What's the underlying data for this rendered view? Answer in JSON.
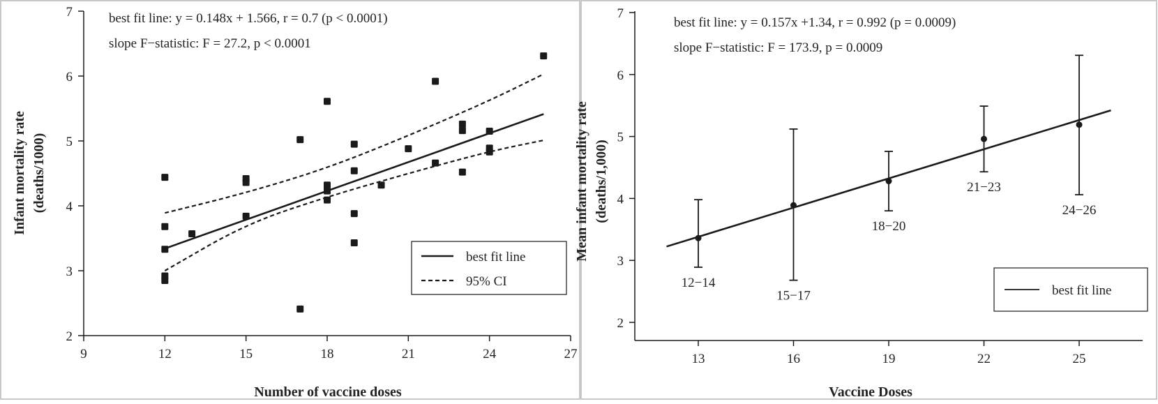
{
  "colors": {
    "ink": "#1a1a1a",
    "background": "#ffffff",
    "border": "#c8c8c8"
  },
  "chart_data": [
    {
      "type": "scatter",
      "xlabel": "Number of vaccine doses",
      "ylabel_line1": "Infant mortality rate",
      "ylabel_line2": "(deaths/1000)",
      "xlim": [
        9,
        27
      ],
      "ylim": [
        2,
        7
      ],
      "xticks": [
        "9",
        "12",
        "15",
        "18",
        "21",
        "24",
        "27"
      ],
      "yticks": [
        "2",
        "3",
        "4",
        "5",
        "6",
        "7"
      ],
      "grid": false,
      "legend_position": "bottom-right",
      "annotations": [
        "best fit line: y = 0.148x + 1.566, r = 0.7 (p < 0.0001)",
        "slope F−statistic: F = 27.2, p < 0.0001"
      ],
      "points": [
        {
          "x": 12,
          "y": 4.44
        },
        {
          "x": 12,
          "y": 3.68
        },
        {
          "x": 12,
          "y": 3.33
        },
        {
          "x": 12,
          "y": 2.92
        },
        {
          "x": 12,
          "y": 2.85
        },
        {
          "x": 13,
          "y": 3.57
        },
        {
          "x": 15,
          "y": 4.42
        },
        {
          "x": 15,
          "y": 4.36
        },
        {
          "x": 15,
          "y": 3.84
        },
        {
          "x": 17,
          "y": 5.02
        },
        {
          "x": 17,
          "y": 2.41
        },
        {
          "x": 18,
          "y": 5.61
        },
        {
          "x": 18,
          "y": 4.32
        },
        {
          "x": 18,
          "y": 4.23
        },
        {
          "x": 18,
          "y": 4.09
        },
        {
          "x": 19,
          "y": 4.95
        },
        {
          "x": 19,
          "y": 4.54
        },
        {
          "x": 19,
          "y": 3.88
        },
        {
          "x": 19,
          "y": 3.43
        },
        {
          "x": 20,
          "y": 4.32
        },
        {
          "x": 21,
          "y": 4.88
        },
        {
          "x": 22,
          "y": 5.92
        },
        {
          "x": 22,
          "y": 4.66
        },
        {
          "x": 23,
          "y": 5.26
        },
        {
          "x": 23,
          "y": 5.16
        },
        {
          "x": 23,
          "y": 4.52
        },
        {
          "x": 24,
          "y": 5.15
        },
        {
          "x": 24,
          "y": 4.89
        },
        {
          "x": 24,
          "y": 4.83
        },
        {
          "x": 26,
          "y": 6.31
        }
      ],
      "fit": {
        "slope": 0.148,
        "intercept": 1.566,
        "x_range": [
          12,
          26
        ]
      },
      "ci_upper": [
        [
          12,
          3.89
        ],
        [
          15,
          4.2
        ],
        [
          18,
          4.58
        ],
        [
          21,
          5.08
        ],
        [
          24,
          5.62
        ],
        [
          26,
          6.03
        ]
      ],
      "ci_lower": [
        [
          12,
          3.0
        ],
        [
          15,
          3.72
        ],
        [
          18,
          4.14
        ],
        [
          21,
          4.5
        ],
        [
          24,
          4.84
        ],
        [
          26,
          5.01
        ]
      ],
      "legend": [
        {
          "label": "best fit line",
          "style": "solid"
        },
        {
          "label": "95% CI",
          "style": "dashed"
        }
      ]
    },
    {
      "type": "scatter",
      "xlabel": "Vaccine Doses",
      "ylabel_line1": "Mean infant mortality rate",
      "ylabel_line2": "(deaths/1,000)",
      "xlim": [
        11,
        27
      ],
      "ylim": [
        2,
        7
      ],
      "xticks": [
        "13",
        "16",
        "19",
        "22",
        "25"
      ],
      "yticks": [
        "2",
        "3",
        "4",
        "5",
        "6",
        "7"
      ],
      "grid": false,
      "legend_position": "bottom-right",
      "annotations": [
        "best fit line: y = 0.157x +1.34, r = 0.992 (p = 0.0009)",
        "slope F−statistic: F = 173.9, p = 0.0009"
      ],
      "groups": [
        {
          "label": "12−14",
          "x": 13,
          "mean": 3.36,
          "low": 2.89,
          "high": 3.98
        },
        {
          "label": "15−17",
          "x": 16,
          "mean": 3.89,
          "low": 2.68,
          "high": 5.12
        },
        {
          "label": "18−20",
          "x": 19,
          "mean": 4.28,
          "low": 3.8,
          "high": 4.76
        },
        {
          "label": "21−23",
          "x": 22,
          "mean": 4.96,
          "low": 4.43,
          "high": 5.49
        },
        {
          "label": "24−26",
          "x": 25,
          "mean": 5.19,
          "low": 4.06,
          "high": 6.31
        }
      ],
      "fit": {
        "slope": 0.157,
        "intercept": 1.34,
        "x_range": [
          12,
          26
        ]
      },
      "legend": [
        {
          "label": "best fit line",
          "style": "solid"
        }
      ]
    }
  ]
}
